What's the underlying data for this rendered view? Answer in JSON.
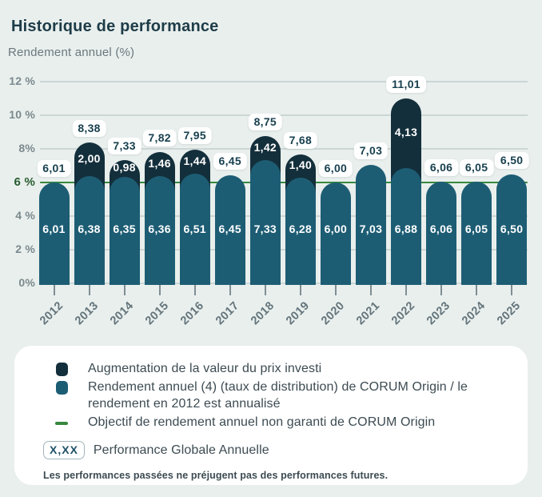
{
  "header": {
    "title": "Historique de performance",
    "subtitle": "Rendement annuel (%)"
  },
  "chart_data": {
    "type": "bar",
    "stacked": true,
    "title": "Historique de performance",
    "ylabel": "Rendement annuel (%)",
    "ylim": [
      0,
      12
    ],
    "grid": true,
    "legend_position": "bottom",
    "categories": [
      "2012",
      "2013",
      "2014",
      "2015",
      "2016",
      "2017",
      "2018",
      "2019",
      "2020",
      "2021",
      "2022",
      "2023",
      "2024",
      "2025"
    ],
    "series": [
      {
        "name": "Rendement annuel (taux de distribution) de CORUM Origin",
        "values": [
          6.01,
          6.38,
          6.35,
          6.36,
          6.51,
          6.45,
          7.33,
          6.28,
          6.0,
          7.03,
          6.88,
          6.06,
          6.05,
          6.5
        ]
      },
      {
        "name": "Augmentation de la valeur du prix investi",
        "values": [
          0,
          2.0,
          0.98,
          1.46,
          1.44,
          0,
          1.42,
          1.4,
          0,
          0,
          4.13,
          0,
          0,
          0
        ]
      }
    ],
    "totals": [
      6.01,
      8.38,
      7.33,
      7.82,
      7.95,
      6.45,
      8.75,
      7.68,
      6.0,
      7.03,
      11.01,
      6.06,
      6.05,
      6.5
    ],
    "value_labels": {
      "total": [
        "6,01",
        "8,38",
        "7,33",
        "7,82",
        "7,95",
        "6,45",
        "8,75",
        "7,68",
        "6,00",
        "7,03",
        "11,01",
        "6,06",
        "6,05",
        "6,50"
      ],
      "base": [
        "6,01",
        "6,38",
        "6,35",
        "6,36",
        "6,51",
        "6,45",
        "7,33",
        "6,28",
        "6,00",
        "7,03",
        "6,88",
        "6,06",
        "6,05",
        "6,50"
      ],
      "top": [
        "",
        "2,00",
        "0,98",
        "1,46",
        "1,44",
        "",
        "1,42",
        "1,40",
        "",
        "",
        "4,13",
        "",
        "",
        ""
      ]
    },
    "target_line": {
      "value": 6,
      "label": "6 %"
    },
    "y_ticks": [
      {
        "value": 0,
        "label": "0%"
      },
      {
        "value": 2,
        "label": "2 %"
      },
      {
        "value": 4,
        "label": "4 %"
      },
      {
        "value": 6,
        "label": "6 %",
        "highlight": true
      },
      {
        "value": 8,
        "label": "8%"
      },
      {
        "value": 10,
        "label": "10 %"
      },
      {
        "value": 12,
        "label": "12 %"
      }
    ]
  },
  "colors": {
    "background": "#e9efed",
    "bar_base": "#1d5d74",
    "bar_top": "#132f3b",
    "target_line": "#37883e",
    "target_label": "#265c2f",
    "grid": "#cbd6d5",
    "axis_text": "#7b898d",
    "year_text": "#63747b",
    "title_text": "#1d3c48",
    "subtitle_text": "#6a787e",
    "pill_text": "#173f4e",
    "tick": "#7f8e93",
    "legend_text": "#3c4b52",
    "card": "#ffffff"
  },
  "legend": {
    "items": [
      {
        "marker": "dark-square",
        "label": "Augmentation de la valeur du prix investi"
      },
      {
        "marker": "teal-square",
        "label": "Rendement annuel (4) (taux de distribution) de CORUM Origin / le\nrendement en 2012 est annualisé"
      },
      {
        "marker": "green-line",
        "label": "Objectif de rendement annuel non garanti de CORUM Origin"
      }
    ],
    "badge": {
      "sample": "X,XX",
      "label": "Performance Globale Annuelle"
    },
    "disclaimer": "Les performances passées ne préjugent pas des performances futures."
  }
}
